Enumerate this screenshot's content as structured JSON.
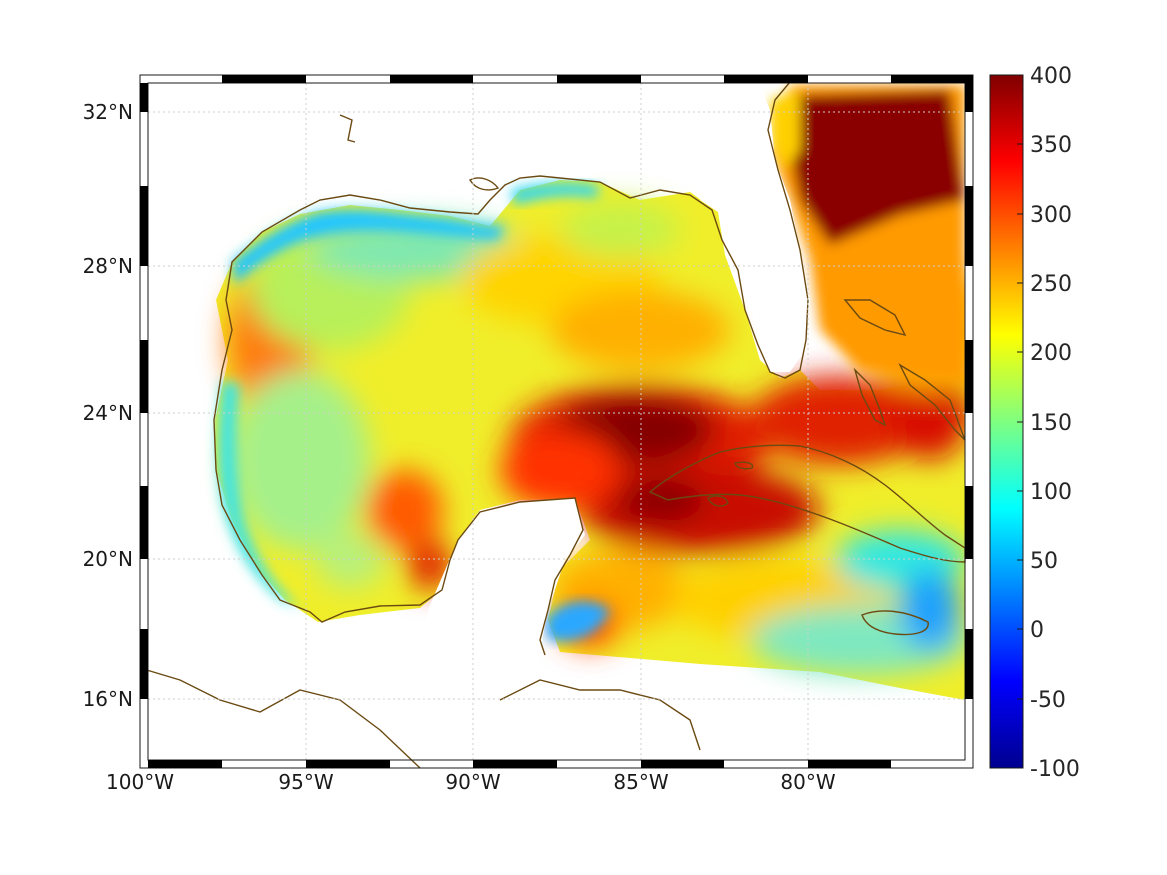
{
  "map": {
    "lon_ticks": [
      "100°W",
      "95°W",
      "90°W",
      "85°W",
      "80°W"
    ],
    "lat_ticks": [
      "32°N",
      "28°N",
      "24°N",
      "20°N",
      "16°N"
    ],
    "colorbar": {
      "ticks": [
        "400",
        "350",
        "300",
        "250",
        "200",
        "150",
        "100",
        "50",
        "0",
        "-50",
        "-100"
      ],
      "min": -100,
      "max": 400,
      "colormap": "jet"
    },
    "coastline_color": "#6b4a12",
    "grid": "dotted"
  }
}
